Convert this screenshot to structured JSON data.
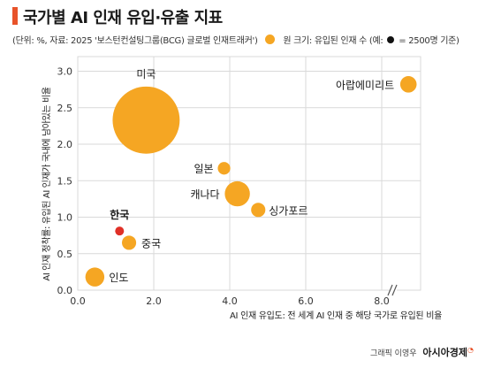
{
  "header": {
    "title": "국가별 AI 인재 유입·유출 지표",
    "subtitle_source": "(단위: %, 자료: 2025 '보스턴컨설팅그룹(BCG) 글로벌 인재트래커')",
    "legend_size_text": "원 크기: 유입된 인재 수 (예:",
    "legend_size_value": "= 2500명 기준)"
  },
  "credit": {
    "author": "그래픽 이영우",
    "brand": "아시아경제"
  },
  "colors": {
    "bubble": "#f5a623",
    "highlight": "#e03027",
    "grid": "#d9d9d9",
    "accent": "#e8532a"
  },
  "chart_data": {
    "type": "scatter",
    "xlabel": "AI 인재 유입도: 전 세계 AI 인재 중 해당 국가로 유입된 비율",
    "ylabel": "AI 인재 정착률: 유입된 AI 인재가 국내에 남아있는 비율",
    "xlim": [
      0,
      8.8
    ],
    "ylim": [
      0,
      3.2
    ],
    "x_broken_after": 8.0,
    "x_ticks": [
      "0.0",
      "2.0",
      "4.0",
      "6.0",
      "8.0"
    ],
    "y_ticks": [
      "0.0",
      "0.5",
      "1.0",
      "1.5",
      "2.0",
      "2.5",
      "3.0"
    ],
    "grid": true,
    "points": [
      {
        "label": "미국",
        "x": 1.8,
        "y": 2.33,
        "size": 10,
        "highlight": false
      },
      {
        "label": "아랍에미리트",
        "x": 8.6,
        "y": 2.82,
        "size": 0.6,
        "highlight": false
      },
      {
        "label": "일본",
        "x": 3.85,
        "y": 1.67,
        "size": 0.35,
        "highlight": false
      },
      {
        "label": "캐나다",
        "x": 4.2,
        "y": 1.32,
        "size": 1.4,
        "highlight": false
      },
      {
        "label": "싱가포르",
        "x": 4.75,
        "y": 1.1,
        "size": 0.45,
        "highlight": false
      },
      {
        "label": "한국",
        "x": 1.1,
        "y": 0.81,
        "size": 0.18,
        "highlight": true
      },
      {
        "label": "중국",
        "x": 1.35,
        "y": 0.65,
        "size": 0.45,
        "highlight": false
      },
      {
        "label": "인도",
        "x": 0.45,
        "y": 0.18,
        "size": 0.8,
        "highlight": false
      }
    ]
  }
}
